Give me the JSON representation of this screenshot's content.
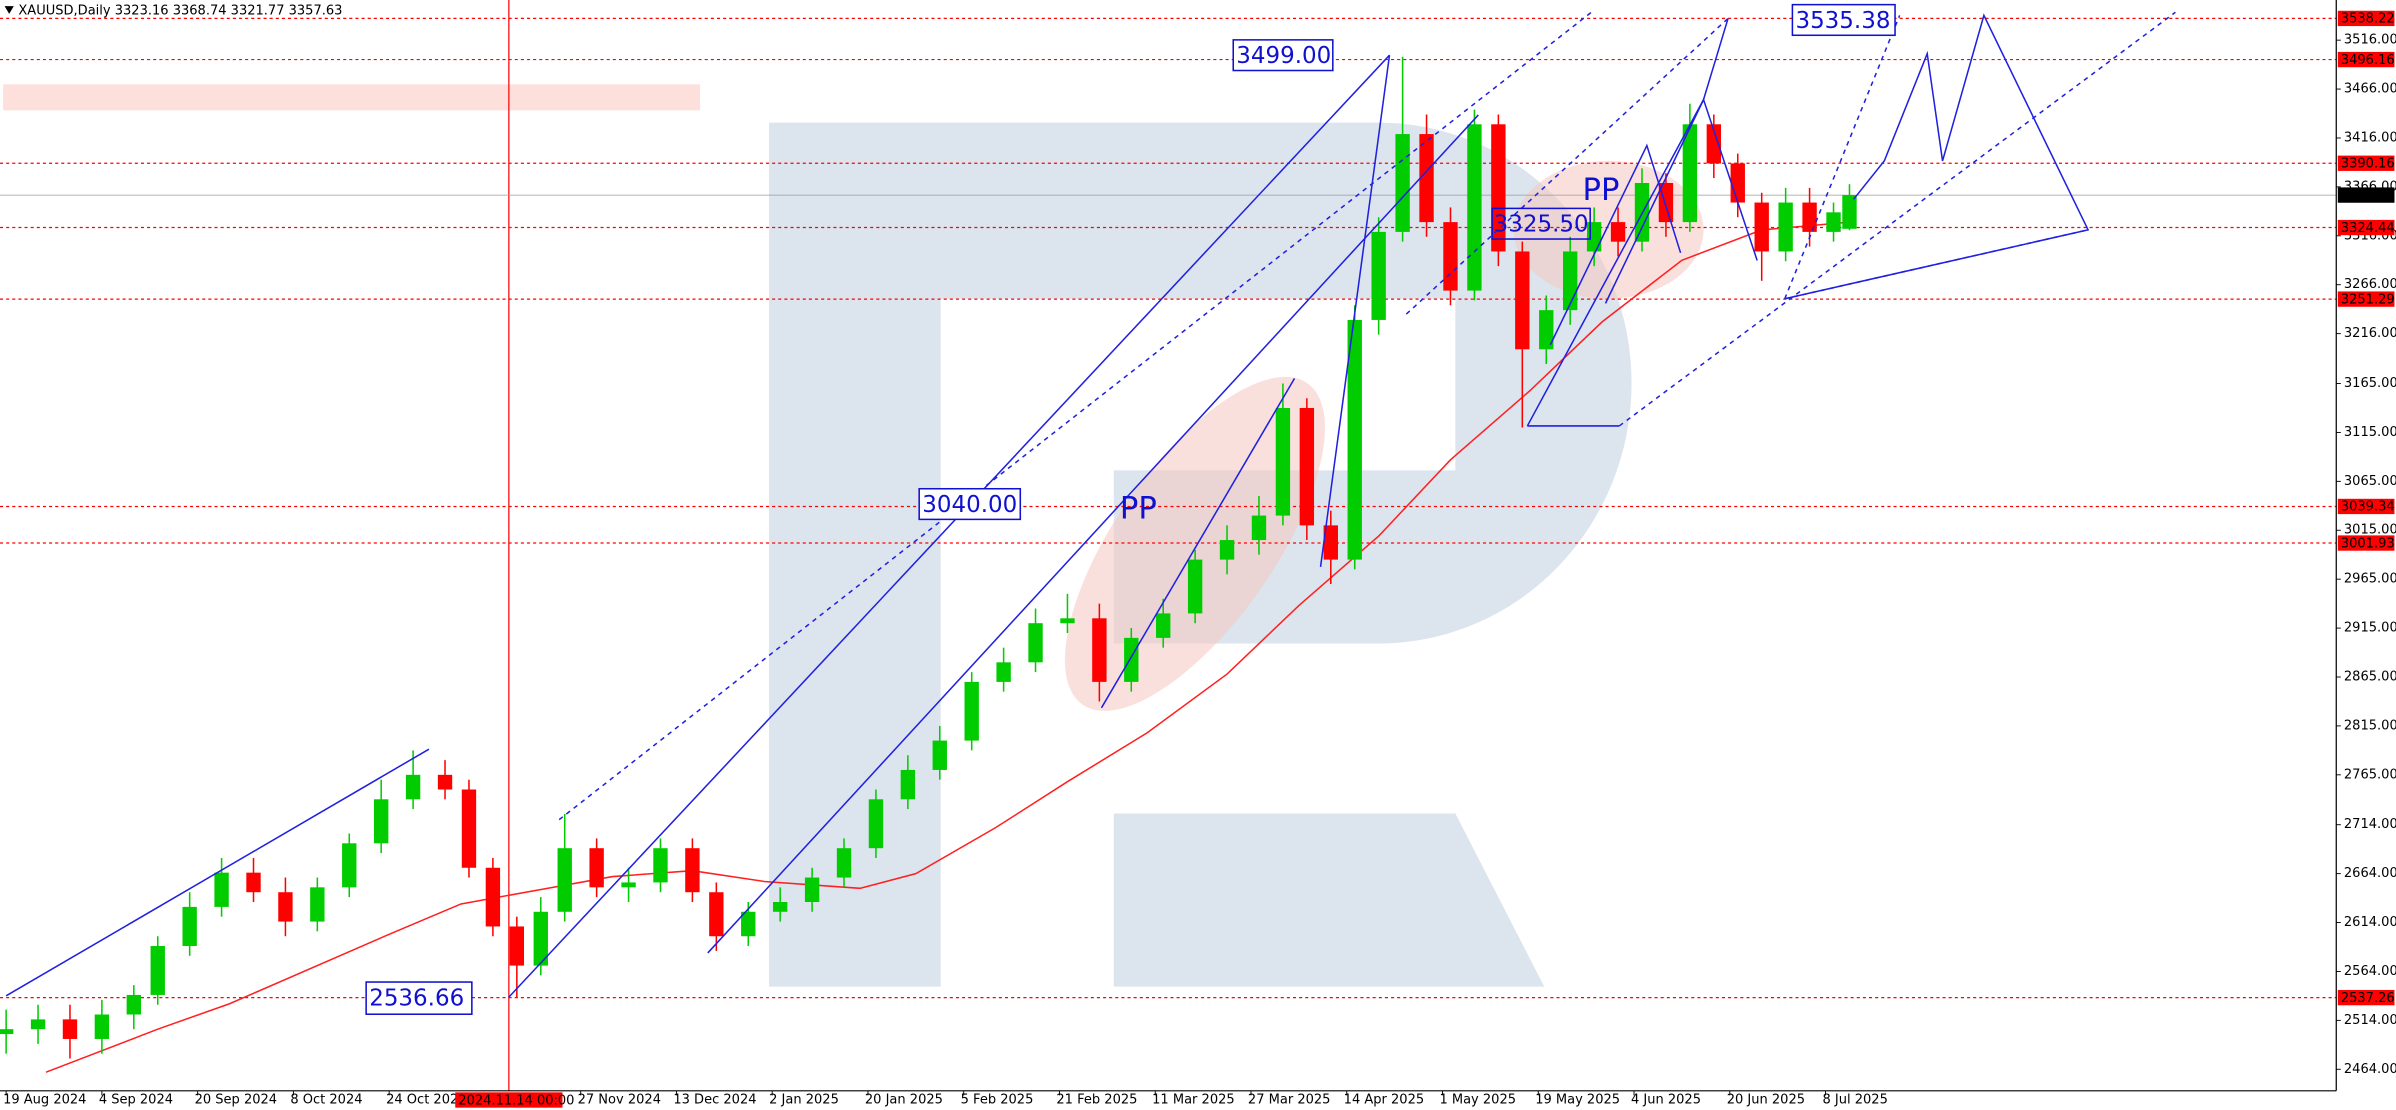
{
  "chart_data": {
    "type": "candlestick",
    "title": "XAUUSD,Daily  3323.16 3368.74 3321.77 3357.63",
    "x": [
      0,
      4,
      8,
      12,
      16,
      19,
      23,
      27,
      31,
      35,
      39,
      43,
      47,
      51,
      55,
      58,
      61,
      64,
      67,
      70,
      74,
      78,
      82,
      86,
      89,
      93,
      97,
      101,
      105,
      109,
      113,
      117,
      121,
      125,
      129,
      133,
      137,
      141,
      145,
      149,
      153,
      157,
      160,
      163,
      166,
      169,
      172,
      175,
      178,
      181,
      184,
      187,
      190,
      193,
      196,
      199,
      202,
      205,
      208,
      211,
      214,
      217,
      220,
      223,
      226,
      229,
      231
    ],
    "open": [
      2500,
      2505,
      2515,
      2495,
      2520,
      2540,
      2590,
      2630,
      2665,
      2645,
      2615,
      2650,
      2695,
      2740,
      2765,
      2750,
      2670,
      2610,
      2570,
      2625,
      2690,
      2650,
      2655,
      2690,
      2645,
      2600,
      2625,
      2635,
      2660,
      2690,
      2740,
      2770,
      2800,
      2860,
      2880,
      2920,
      2925,
      2860,
      2905,
      2930,
      2985,
      3005,
      3030,
      3140,
      3020,
      2985,
      3230,
      3320,
      3420,
      3330,
      3260,
      3430,
      3300,
      3200,
      3240,
      3300,
      3330,
      3310,
      3370,
      3330,
      3430,
      3390,
      3350,
      3300,
      3350,
      3320,
      3323.16
    ],
    "high": [
      2525,
      2530,
      2530,
      2535,
      2550,
      2600,
      2645,
      2680,
      2680,
      2660,
      2660,
      2705,
      2760,
      2790,
      2780,
      2760,
      2680,
      2620,
      2640,
      2725,
      2700,
      2670,
      2700,
      2700,
      2655,
      2635,
      2650,
      2670,
      2700,
      2750,
      2785,
      2815,
      2870,
      2895,
      2935,
      2950,
      2940,
      2915,
      2945,
      2995,
      3020,
      3050,
      3165,
      3150,
      3035,
      3245,
      3335,
      3499,
      3440,
      3345,
      3445,
      3440,
      3310,
      3255,
      3315,
      3345,
      3345,
      3385,
      3380,
      3451,
      3440,
      3400,
      3360,
      3365,
      3365,
      3350,
      3368.74
    ],
    "low": [
      2480,
      2490,
      2475,
      2480,
      2505,
      2530,
      2580,
      2620,
      2635,
      2600,
      2605,
      2640,
      2685,
      2730,
      2740,
      2660,
      2600,
      2537,
      2560,
      2615,
      2640,
      2635,
      2645,
      2635,
      2585,
      2590,
      2615,
      2625,
      2650,
      2680,
      2730,
      2760,
      2790,
      2850,
      2870,
      2910,
      2840,
      2850,
      2895,
      2920,
      2970,
      2990,
      3020,
      3005,
      2960,
      2975,
      3215,
      3310,
      3315,
      3245,
      3250,
      3285,
      3120,
      3185,
      3225,
      3285,
      3295,
      3300,
      3315,
      3320,
      3375,
      3335,
      3270,
      3290,
      3305,
      3310,
      3321.77
    ],
    "close": [
      2505,
      2515,
      2495,
      2520,
      2540,
      2590,
      2630,
      2665,
      2645,
      2615,
      2650,
      2695,
      2740,
      2765,
      2750,
      2670,
      2610,
      2570,
      2625,
      2690,
      2650,
      2655,
      2690,
      2645,
      2600,
      2625,
      2635,
      2660,
      2690,
      2740,
      2770,
      2800,
      2860,
      2880,
      2920,
      2925,
      2860,
      2905,
      2930,
      2985,
      3005,
      3030,
      3140,
      3020,
      2985,
      3230,
      3320,
      3420,
      3330,
      3260,
      3430,
      3300,
      3200,
      3240,
      3300,
      3330,
      3310,
      3370,
      3330,
      3430,
      3390,
      3350,
      3300,
      3350,
      3320,
      3340,
      3357.63
    ],
    "up_color": "#00cc00",
    "down_color": "#ff0000",
    "moving_average": {
      "color": "#ff2020",
      "x": [
        5,
        19,
        28,
        48,
        57,
        76,
        86,
        95,
        107,
        114,
        124,
        133,
        143,
        153,
        162,
        172,
        181,
        191,
        200,
        210,
        220,
        231
      ],
      "values": [
        2461,
        2505,
        2531,
        2602,
        2633,
        2661,
        2667,
        2656,
        2649,
        2664,
        2711,
        2758,
        2808,
        2868,
        2938,
        3009,
        3087,
        3158,
        3228,
        3291,
        3322,
        3330
      ]
    },
    "levels": [
      3538.22,
      3496.16,
      3390.16,
      3324.44,
      3251.29,
      3039.34,
      3001.93,
      2537.26
    ],
    "level_color": "#ff0000",
    "last_price": 3357.63,
    "xlim": [
      0,
      292
    ],
    "ylim": [
      2442,
      3557
    ],
    "yticks": [
      {
        "value": 3516,
        "label": "3516.00"
      },
      {
        "value": 3466,
        "label": "3466.00"
      },
      {
        "value": 3416,
        "label": "3416.00"
      },
      {
        "value": 3366,
        "label": "3366.00"
      },
      {
        "value": 3316,
        "label": "3316.00"
      },
      {
        "value": 3266,
        "label": "3266.00"
      },
      {
        "value": 3216,
        "label": "3216.00"
      },
      {
        "value": 3165,
        "label": "3165.00"
      },
      {
        "value": 3115,
        "label": "3115.00"
      },
      {
        "value": 3065,
        "label": "3065.00"
      },
      {
        "value": 3015,
        "label": "3015.00"
      },
      {
        "value": 2965,
        "label": "2965.00"
      },
      {
        "value": 2915,
        "label": "2915.00"
      },
      {
        "value": 2865,
        "label": "2865.00"
      },
      {
        "value": 2815,
        "label": "2815.00"
      },
      {
        "value": 2765,
        "label": "2765.00"
      },
      {
        "value": 2714,
        "label": "2714.00"
      },
      {
        "value": 2664,
        "label": "2664.00"
      },
      {
        "value": 2614,
        "label": "2614.00"
      },
      {
        "value": 2564,
        "label": "2564.00"
      },
      {
        "value": 2514,
        "label": "2514.00"
      },
      {
        "value": 2464,
        "label": "2464.00"
      }
    ],
    "xticks": [
      {
        "value": 0,
        "label": "19 Aug 2024"
      },
      {
        "value": 12,
        "label": "4 Sep 2024"
      },
      {
        "value": 24,
        "label": "20 Sep 2024"
      },
      {
        "value": 36,
        "label": "8 Oct 2024"
      },
      {
        "value": 48,
        "label": "24 Oct 2024"
      },
      {
        "value": 72,
        "label": "27 Nov 2024"
      },
      {
        "value": 84,
        "label": "13 Dec 2024"
      },
      {
        "value": 96,
        "label": "2 Jan 2025"
      },
      {
        "value": 108,
        "label": "20 Jan 2025"
      },
      {
        "value": 120,
        "label": "5 Feb 2025"
      },
      {
        "value": 132,
        "label": "21 Feb 2025"
      },
      {
        "value": 144,
        "label": "11 Mar 2025"
      },
      {
        "value": 156,
        "label": "27 Mar 2025"
      },
      {
        "value": 168,
        "label": "14 Apr 2025"
      },
      {
        "value": 180,
        "label": "1 May 2025"
      },
      {
        "value": 192,
        "label": "19 May 2025"
      },
      {
        "value": 204,
        "label": "4 Jun 2025"
      },
      {
        "value": 216,
        "label": "20 Jun 2025"
      },
      {
        "value": 228,
        "label": "8 Jul 2025"
      }
    ],
    "crosshair": {
      "x": 63,
      "label": "2024.11.14 00:00"
    },
    "annotations": [
      "3499.00",
      "3040.00",
      "2536.66",
      "3325.50",
      "3535.38",
      "PP",
      "PP"
    ]
  }
}
